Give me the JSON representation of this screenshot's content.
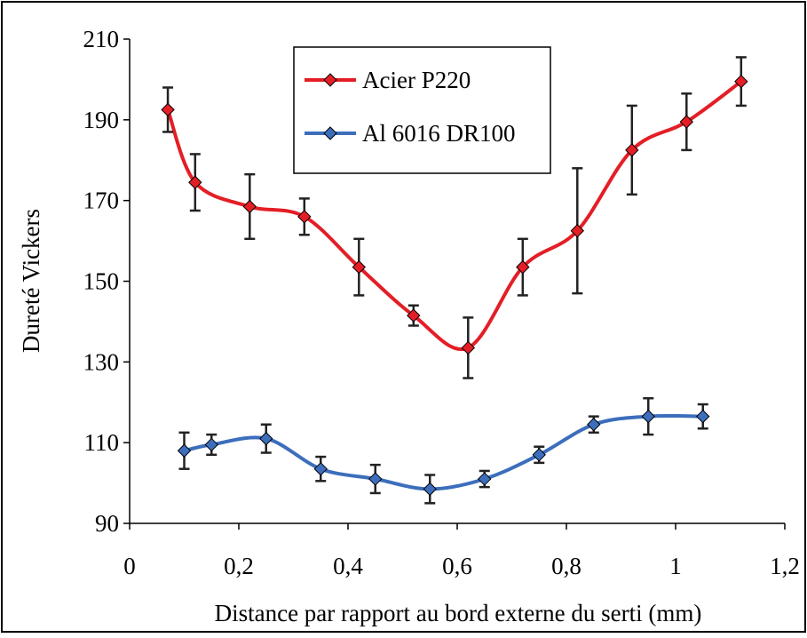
{
  "colors": {
    "series_1": "#e41e26",
    "series_2": "#3c6ebc",
    "error_bar": "#222222",
    "axis": "#000000",
    "background": "#ffffff"
  },
  "chart_data": {
    "type": "line",
    "title": "",
    "xlabel": "Distance par rapport au bord externe du serti (mm)",
    "ylabel": "Dureté Vickers",
    "xlim": [
      0,
      1.2
    ],
    "ylim": [
      90,
      210
    ],
    "x_ticks": [
      "0",
      "0,2",
      "0,4",
      "0,6",
      "0,8",
      "1",
      "1,2"
    ],
    "y_ticks": [
      "90",
      "110",
      "130",
      "150",
      "170",
      "190",
      "210"
    ],
    "grid": false,
    "legend_position": "top-center",
    "series": [
      {
        "name": "Acier P220",
        "color": "#e41e26",
        "marker": "diamond",
        "x": [
          0.07,
          0.12,
          0.22,
          0.32,
          0.42,
          0.52,
          0.62,
          0.72,
          0.82,
          0.92,
          1.02,
          1.12
        ],
        "y": [
          192.5,
          174.5,
          168.5,
          166,
          153.5,
          141.5,
          133.5,
          153.5,
          162.5,
          182.5,
          189.5,
          199.5
        ],
        "error": [
          5.5,
          7,
          8,
          4.5,
          7,
          2.5,
          7.5,
          7,
          15.5,
          11,
          7,
          6
        ]
      },
      {
        "name": "Al 6016 DR100",
        "color": "#3c6ebc",
        "marker": "diamond",
        "x": [
          0.1,
          0.15,
          0.25,
          0.35,
          0.45,
          0.55,
          0.65,
          0.75,
          0.85,
          0.95,
          1.05
        ],
        "y": [
          108,
          109.5,
          111,
          103.5,
          101,
          98.5,
          101,
          107,
          114.5,
          116.5,
          116.5
        ],
        "error": [
          4.5,
          2.5,
          3.5,
          3,
          3.5,
          3.5,
          2,
          2,
          2,
          4.5,
          3
        ]
      }
    ]
  }
}
